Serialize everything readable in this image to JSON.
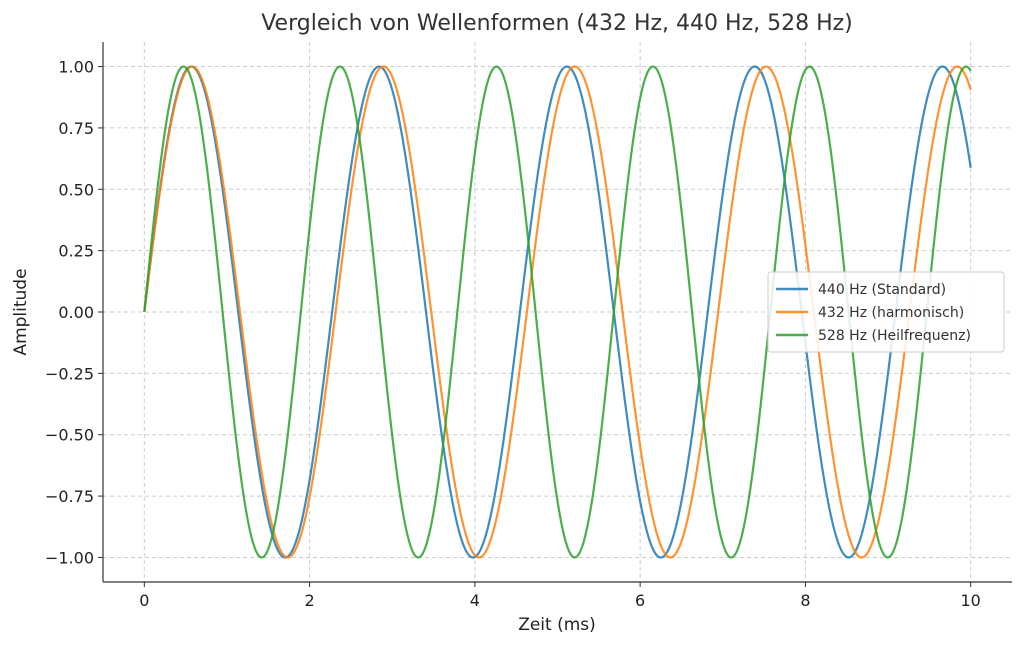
{
  "chart_data": {
    "type": "line",
    "title": "Vergleich von Wellenformen (432 Hz, 440 Hz, 528 Hz)",
    "xlabel": "Zeit (ms)",
    "ylabel": "Amplitude",
    "xlim": [
      -0.5,
      10.5
    ],
    "ylim": [
      -1.1,
      1.1
    ],
    "x_ticks": [
      0,
      2,
      4,
      6,
      8,
      10
    ],
    "x_tick_labels": [
      "0",
      "2",
      "4",
      "6",
      "8",
      "10"
    ],
    "y_ticks": [
      1.0,
      0.75,
      0.5,
      0.25,
      0.0,
      -0.25,
      -0.5,
      -0.75,
      -1.0
    ],
    "y_tick_labels": [
      "1.00",
      "0.75",
      "0.50",
      "0.25",
      "0.00",
      "−0.25",
      "−0.50",
      "−0.75",
      "−1.00"
    ],
    "grid": true,
    "legend_position": "right",
    "series": [
      {
        "name": "440 Hz (Standard)",
        "function": "sine",
        "frequency_hz": 440,
        "amplitude": 1,
        "x_range_ms": [
          0,
          10
        ],
        "color": "#1f77b4"
      },
      {
        "name": "432 Hz (harmonisch)",
        "function": "sine",
        "frequency_hz": 432,
        "amplitude": 1,
        "x_range_ms": [
          0,
          10
        ],
        "color": "#ff7f0e"
      },
      {
        "name": "528 Hz (Heilfrequenz)",
        "function": "sine",
        "frequency_hz": 528,
        "amplitude": 1,
        "x_range_ms": [
          0,
          10
        ],
        "color": "#2ca02c"
      }
    ]
  }
}
